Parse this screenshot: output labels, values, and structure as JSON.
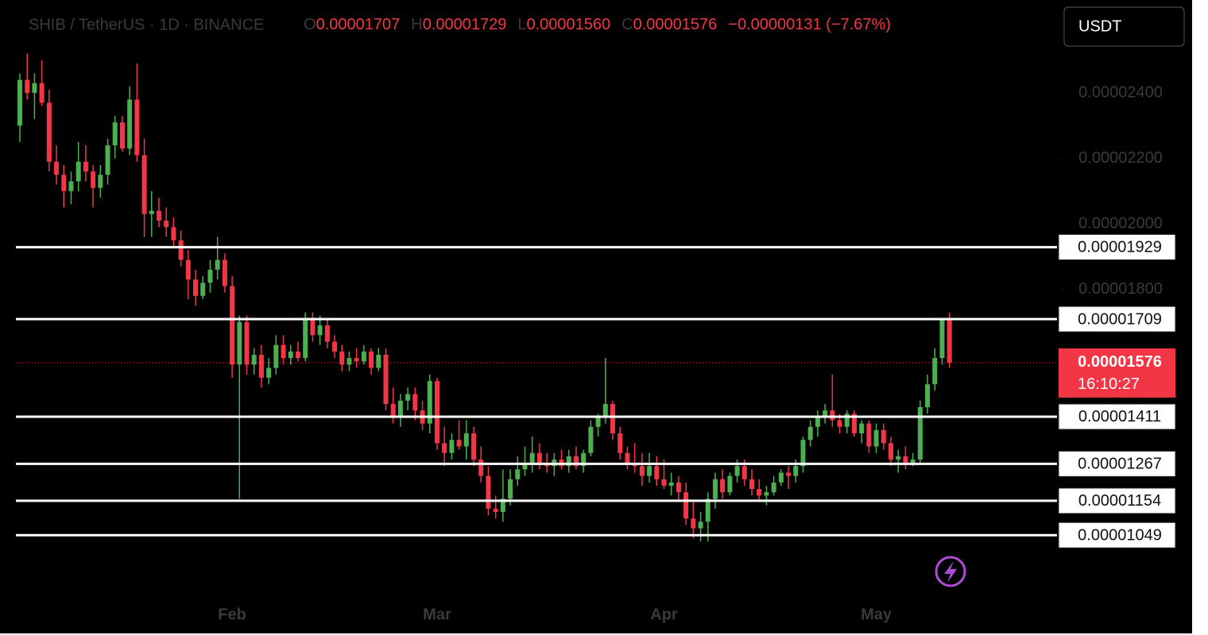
{
  "chart_data": {
    "type": "candlestick",
    "symbol": "SHIB / TetherUS · 1D · BINANCE",
    "legend": [
      {
        "key": "O",
        "text": "0.00001707"
      },
      {
        "key": "H",
        "text": "0.00001729"
      },
      {
        "key": "L",
        "text": "0.00001560"
      },
      {
        "key": "C",
        "text": "0.00001576"
      }
    ],
    "change": "−0.00000131 (−7.67%)",
    "currency_button": "USDT",
    "up_color": "#4caf50",
    "down_color": "#f23645",
    "ylim": [
      8.41e-06,
      2.684e-05
    ],
    "yticks": [
      {
        "value": 2.4e-05,
        "label": "0.00002400"
      },
      {
        "value": 2.2e-05,
        "label": "0.00002200"
      },
      {
        "value": 2e-05,
        "label": "0.00002000"
      },
      {
        "value": 1.8e-05,
        "label": "0.00001800"
      }
    ],
    "price_levels": [
      {
        "value": 1.929e-05,
        "label": "0.00001929"
      },
      {
        "value": 1.709e-05,
        "label": "0.00001709"
      },
      {
        "value": 1.411e-05,
        "label": "0.00001411"
      },
      {
        "value": 1.267e-05,
        "label": "0.00001267"
      },
      {
        "value": 1.154e-05,
        "label": "0.00001154"
      },
      {
        "value": 1.049e-05,
        "label": "0.00001049"
      }
    ],
    "last_price": {
      "value": 1.576e-05,
      "label": "0.00001576"
    },
    "countdown": "16:10:27",
    "categories": [
      null,
      null,
      null,
      null,
      null,
      null,
      null,
      null,
      null,
      null,
      null,
      null,
      null,
      null,
      null,
      null,
      null,
      null,
      null,
      null,
      null,
      null,
      null,
      null,
      null,
      null,
      null,
      null,
      null,
      "Feb",
      null,
      null,
      null,
      null,
      null,
      null,
      null,
      null,
      null,
      null,
      null,
      null,
      null,
      null,
      null,
      null,
      null,
      null,
      null,
      null,
      null,
      null,
      null,
      null,
      null,
      null,
      null,
      "Mar",
      null,
      null,
      null,
      null,
      null,
      null,
      null,
      null,
      null,
      null,
      null,
      null,
      null,
      null,
      null,
      null,
      null,
      null,
      null,
      null,
      null,
      null,
      null,
      null,
      null,
      null,
      null,
      null,
      null,
      null,
      "Apr",
      null,
      null,
      null,
      null,
      null,
      null,
      null,
      null,
      null,
      null,
      null,
      null,
      null,
      null,
      null,
      null,
      null,
      null,
      null,
      null,
      null,
      null,
      null,
      null,
      null,
      null,
      null,
      null,
      "May",
      null,
      null,
      null,
      null,
      null,
      null,
      null,
      null,
      null
    ],
    "ohlc": [
      [
        2.3e-05,
        2.46e-05,
        2.25e-05,
        2.44e-05
      ],
      [
        2.44e-05,
        2.52e-05,
        2.38e-05,
        2.4e-05
      ],
      [
        2.4e-05,
        2.46e-05,
        2.32e-05,
        2.43e-05
      ],
      [
        2.43e-05,
        2.5e-05,
        2.36e-05,
        2.37e-05
      ],
      [
        2.37e-05,
        2.41e-05,
        2.16e-05,
        2.19e-05
      ],
      [
        2.19e-05,
        2.24e-05,
        2.12e-05,
        2.15e-05
      ],
      [
        2.15e-05,
        2.18e-05,
        2.05e-05,
        2.1e-05
      ],
      [
        2.1e-05,
        2.16e-05,
        2.06e-05,
        2.13e-05
      ],
      [
        2.13e-05,
        2.25e-05,
        2.1e-05,
        2.19e-05
      ],
      [
        2.19e-05,
        2.24e-05,
        2.13e-05,
        2.16e-05
      ],
      [
        2.16e-05,
        2.18e-05,
        2.05e-05,
        2.11e-05
      ],
      [
        2.11e-05,
        2.18e-05,
        2.08e-05,
        2.15e-05
      ],
      [
        2.15e-05,
        2.26e-05,
        2.12e-05,
        2.24e-05
      ],
      [
        2.24e-05,
        2.33e-05,
        2.2e-05,
        2.31e-05
      ],
      [
        2.31e-05,
        2.33e-05,
        2.22e-05,
        2.23e-05
      ],
      [
        2.23e-05,
        2.42e-05,
        2.21e-05,
        2.38e-05
      ],
      [
        2.38e-05,
        2.49e-05,
        2.19e-05,
        2.21e-05
      ],
      [
        2.21e-05,
        2.26e-05,
        1.96e-05,
        2.03e-05
      ],
      [
        2.03e-05,
        2.1e-05,
        1.96e-05,
        2.04e-05
      ],
      [
        2.04e-05,
        2.08e-05,
        1.99e-05,
        2.01e-05
      ],
      [
        2.01e-05,
        2.05e-05,
        1.96e-05,
        1.99e-05
      ],
      [
        1.99e-05,
        2.02e-05,
        1.93e-05,
        1.95e-05
      ],
      [
        1.95e-05,
        1.98e-05,
        1.87e-05,
        1.89e-05
      ],
      [
        1.89e-05,
        1.92e-05,
        1.77e-05,
        1.83e-05
      ],
      [
        1.83e-05,
        1.86e-05,
        1.75e-05,
        1.78e-05
      ],
      [
        1.78e-05,
        1.84e-05,
        1.77e-05,
        1.82e-05
      ],
      [
        1.82e-05,
        1.89e-05,
        1.79e-05,
        1.86e-05
      ],
      [
        1.86e-05,
        1.96e-05,
        1.83e-05,
        1.89e-05
      ],
      [
        1.89e-05,
        1.91e-05,
        1.79e-05,
        1.81e-05
      ],
      [
        1.81e-05,
        1.84e-05,
        1.53e-05,
        1.57e-05
      ],
      [
        1.57e-05,
        1.72e-05,
        1.16e-05,
        1.7e-05
      ],
      [
        1.7e-05,
        1.72e-05,
        1.54e-05,
        1.57e-05
      ],
      [
        1.57e-05,
        1.62e-05,
        1.54e-05,
        1.6e-05
      ],
      [
        1.6e-05,
        1.63e-05,
        1.5e-05,
        1.53e-05
      ],
      [
        1.53e-05,
        1.59e-05,
        1.51e-05,
        1.56e-05
      ],
      [
        1.56e-05,
        1.66e-05,
        1.54e-05,
        1.63e-05
      ],
      [
        1.63e-05,
        1.66e-05,
        1.57e-05,
        1.59e-05
      ],
      [
        1.59e-05,
        1.63e-05,
        1.57e-05,
        1.61e-05
      ],
      [
        1.61e-05,
        1.64e-05,
        1.58e-05,
        1.59e-05
      ],
      [
        1.59e-05,
        1.73e-05,
        1.58e-05,
        1.71e-05
      ],
      [
        1.71e-05,
        1.73e-05,
        1.64e-05,
        1.66e-05
      ],
      [
        1.66e-05,
        1.72e-05,
        1.63e-05,
        1.69e-05
      ],
      [
        1.69e-05,
        1.71e-05,
        1.62e-05,
        1.64e-05
      ],
      [
        1.64e-05,
        1.66e-05,
        1.59e-05,
        1.61e-05
      ],
      [
        1.61e-05,
        1.63e-05,
        1.55e-05,
        1.57e-05
      ],
      [
        1.57e-05,
        1.61e-05,
        1.55e-05,
        1.59e-05
      ],
      [
        1.59e-05,
        1.62e-05,
        1.56e-05,
        1.58e-05
      ],
      [
        1.58e-05,
        1.63e-05,
        1.57e-05,
        1.61e-05
      ],
      [
        1.61e-05,
        1.62e-05,
        1.54e-05,
        1.56e-05
      ],
      [
        1.56e-05,
        1.62e-05,
        1.55e-05,
        1.6e-05
      ],
      [
        1.6e-05,
        1.62e-05,
        1.43e-05,
        1.45e-05
      ],
      [
        1.45e-05,
        1.5e-05,
        1.39e-05,
        1.41e-05
      ],
      [
        1.41e-05,
        1.48e-05,
        1.38e-05,
        1.46e-05
      ],
      [
        1.46e-05,
        1.5e-05,
        1.43e-05,
        1.48e-05
      ],
      [
        1.48e-05,
        1.5e-05,
        1.4e-05,
        1.43e-05
      ],
      [
        1.43e-05,
        1.46e-05,
        1.37e-05,
        1.39e-05
      ],
      [
        1.39e-05,
        1.54e-05,
        1.36e-05,
        1.52e-05
      ],
      [
        1.52e-05,
        1.53e-05,
        1.31e-05,
        1.33e-05
      ],
      [
        1.33e-05,
        1.38e-05,
        1.26e-05,
        1.3e-05
      ],
      [
        1.3e-05,
        1.36e-05,
        1.28e-05,
        1.34e-05
      ],
      [
        1.34e-05,
        1.4e-05,
        1.31e-05,
        1.32e-05
      ],
      [
        1.32e-05,
        1.4e-05,
        1.28e-05,
        1.36e-05
      ],
      [
        1.36e-05,
        1.38e-05,
        1.26e-05,
        1.28e-05
      ],
      [
        1.28e-05,
        1.32e-05,
        1.21e-05,
        1.23e-05
      ],
      [
        1.23e-05,
        1.26e-05,
        1.11e-05,
        1.13e-05
      ],
      [
        1.13e-05,
        1.17e-05,
        1.1e-05,
        1.12e-05
      ],
      [
        1.12e-05,
        1.25e-05,
        1.09e-05,
        1.16e-05
      ],
      [
        1.16e-05,
        1.25e-05,
        1.14e-05,
        1.22e-05
      ],
      [
        1.22e-05,
        1.29e-05,
        1.2e-05,
        1.25e-05
      ],
      [
        1.25e-05,
        1.32e-05,
        1.23e-05,
        1.27e-05
      ],
      [
        1.27e-05,
        1.35e-05,
        1.24e-05,
        1.3e-05
      ],
      [
        1.3e-05,
        1.33e-05,
        1.25e-05,
        1.27e-05
      ],
      [
        1.27e-05,
        1.3e-05,
        1.24e-05,
        1.26e-05
      ],
      [
        1.26e-05,
        1.3e-05,
        1.23e-05,
        1.28e-05
      ],
      [
        1.28e-05,
        1.31e-05,
        1.25e-05,
        1.26e-05
      ],
      [
        1.26e-05,
        1.31e-05,
        1.24e-05,
        1.29e-05
      ],
      [
        1.29e-05,
        1.32e-05,
        1.25e-05,
        1.26e-05
      ],
      [
        1.26e-05,
        1.31e-05,
        1.24e-05,
        1.3e-05
      ],
      [
        1.3e-05,
        1.4e-05,
        1.29e-05,
        1.38e-05
      ],
      [
        1.38e-05,
        1.42e-05,
        1.35e-05,
        1.41e-05
      ],
      [
        1.41e-05,
        1.59e-05,
        1.39e-05,
        1.45e-05
      ],
      [
        1.45e-05,
        1.46e-05,
        1.34e-05,
        1.36e-05
      ],
      [
        1.36e-05,
        1.38e-05,
        1.28e-05,
        1.3e-05
      ],
      [
        1.3e-05,
        1.32e-05,
        1.25e-05,
        1.27e-05
      ],
      [
        1.27e-05,
        1.33e-05,
        1.24e-05,
        1.26e-05
      ],
      [
        1.26e-05,
        1.3e-05,
        1.2e-05,
        1.23e-05
      ],
      [
        1.23e-05,
        1.3e-05,
        1.21e-05,
        1.26e-05
      ],
      [
        1.26e-05,
        1.29e-05,
        1.2e-05,
        1.22e-05
      ],
      [
        1.22e-05,
        1.28e-05,
        1.19e-05,
        1.2e-05
      ],
      [
        1.2e-05,
        1.24e-05,
        1.17e-05,
        1.21e-05
      ],
      [
        1.21e-05,
        1.23e-05,
        1.15e-05,
        1.18e-05
      ],
      [
        1.18e-05,
        1.21e-05,
        1.08e-05,
        1.1e-05
      ],
      [
        1.1e-05,
        1.15e-05,
        1.04e-05,
        1.07e-05
      ],
      [
        1.07e-05,
        1.12e-05,
        1.03e-05,
        1.09e-05
      ],
      [
        1.09e-05,
        1.18e-05,
        1.03e-05,
        1.16e-05
      ],
      [
        1.16e-05,
        1.24e-05,
        1.13e-05,
        1.22e-05
      ],
      [
        1.22e-05,
        1.25e-05,
        1.16e-05,
        1.18e-05
      ],
      [
        1.18e-05,
        1.24e-05,
        1.17e-05,
        1.23e-05
      ],
      [
        1.23e-05,
        1.28e-05,
        1.21e-05,
        1.26e-05
      ],
      [
        1.26e-05,
        1.28e-05,
        1.2e-05,
        1.22e-05
      ],
      [
        1.22e-05,
        1.25e-05,
        1.17e-05,
        1.19e-05
      ],
      [
        1.19e-05,
        1.22e-05,
        1.15e-05,
        1.17e-05
      ],
      [
        1.17e-05,
        1.2e-05,
        1.14e-05,
        1.18e-05
      ],
      [
        1.18e-05,
        1.23e-05,
        1.17e-05,
        1.21e-05
      ],
      [
        1.21e-05,
        1.25e-05,
        1.2e-05,
        1.24e-05
      ],
      [
        1.24e-05,
        1.26e-05,
        1.19e-05,
        1.23e-05
      ],
      [
        1.23e-05,
        1.28e-05,
        1.21e-05,
        1.26e-05
      ],
      [
        1.26e-05,
        1.35e-05,
        1.24e-05,
        1.34e-05
      ],
      [
        1.34e-05,
        1.4e-05,
        1.32e-05,
        1.38e-05
      ],
      [
        1.38e-05,
        1.43e-05,
        1.35e-05,
        1.41e-05
      ],
      [
        1.41e-05,
        1.45e-05,
        1.39e-05,
        1.43e-05
      ],
      [
        1.43e-05,
        1.54e-05,
        1.38e-05,
        1.4e-05
      ],
      [
        1.4e-05,
        1.42e-05,
        1.36e-05,
        1.38e-05
      ],
      [
        1.38e-05,
        1.43e-05,
        1.36e-05,
        1.42e-05
      ],
      [
        1.42e-05,
        1.43e-05,
        1.35e-05,
        1.36e-05
      ],
      [
        1.36e-05,
        1.4e-05,
        1.33e-05,
        1.39e-05
      ],
      [
        1.39e-05,
        1.4e-05,
        1.3e-05,
        1.32e-05
      ],
      [
        1.32e-05,
        1.39e-05,
        1.3e-05,
        1.37e-05
      ],
      [
        1.37e-05,
        1.39e-05,
        1.31e-05,
        1.33e-05
      ],
      [
        1.33e-05,
        1.35e-05,
        1.26e-05,
        1.28e-05
      ],
      [
        1.28e-05,
        1.31e-05,
        1.24e-05,
        1.29e-05
      ],
      [
        1.29e-05,
        1.32e-05,
        1.25e-05,
        1.27e-05
      ],
      [
        1.27e-05,
        1.3e-05,
        1.26e-05,
        1.28e-05
      ],
      [
        1.28e-05,
        1.46e-05,
        1.27e-05,
        1.44e-05
      ],
      [
        1.44e-05,
        1.54e-05,
        1.42e-05,
        1.51e-05
      ],
      [
        1.51e-05,
        1.62e-05,
        1.49e-05,
        1.59e-05
      ],
      [
        1.59e-05,
        1.71e-05,
        1.57e-05,
        1.707e-05
      ],
      [
        1.707e-05,
        1.729e-05,
        1.56e-05,
        1.576e-05
      ]
    ]
  }
}
